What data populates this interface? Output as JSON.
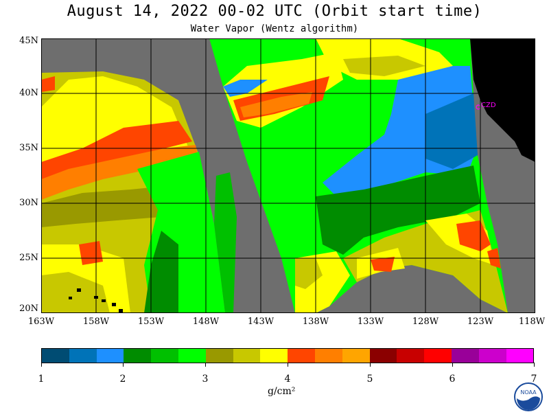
{
  "title": "August 14, 2022  00-02 UTC  (Orbit start time)",
  "subtitle": "Water Vapor (Wentz algorithm)",
  "lat_labels": [
    "45N",
    "40N",
    "35N",
    "30N",
    "25N",
    "20N"
  ],
  "lon_labels": [
    "163W",
    "158W",
    "153W",
    "148W",
    "143W",
    "138W",
    "133W",
    "128W",
    "123W",
    "118W"
  ],
  "station_label": "CZD",
  "colorbar": {
    "tick_labels": [
      "1",
      "2",
      "3",
      "4",
      "5",
      "6",
      "7"
    ],
    "units": "g/cm²",
    "colors": [
      "#004c73",
      "#0073b8",
      "#1e90ff",
      "#008c00",
      "#00c000",
      "#00ff00",
      "#999900",
      "#c8c800",
      "#ffff00",
      "#ff4500",
      "#ff7f00",
      "#ffa500",
      "#8b0000",
      "#c80000",
      "#ff0000",
      "#990099",
      "#cc00cc",
      "#ff00ff"
    ]
  },
  "map_colors": {
    "ocean_nodata": "#6e6e6e",
    "land": "#000000",
    "grid": "#000000",
    "station": "#ff00ff"
  },
  "logo": {
    "name": "noaa-logo",
    "text": "NOAA"
  }
}
